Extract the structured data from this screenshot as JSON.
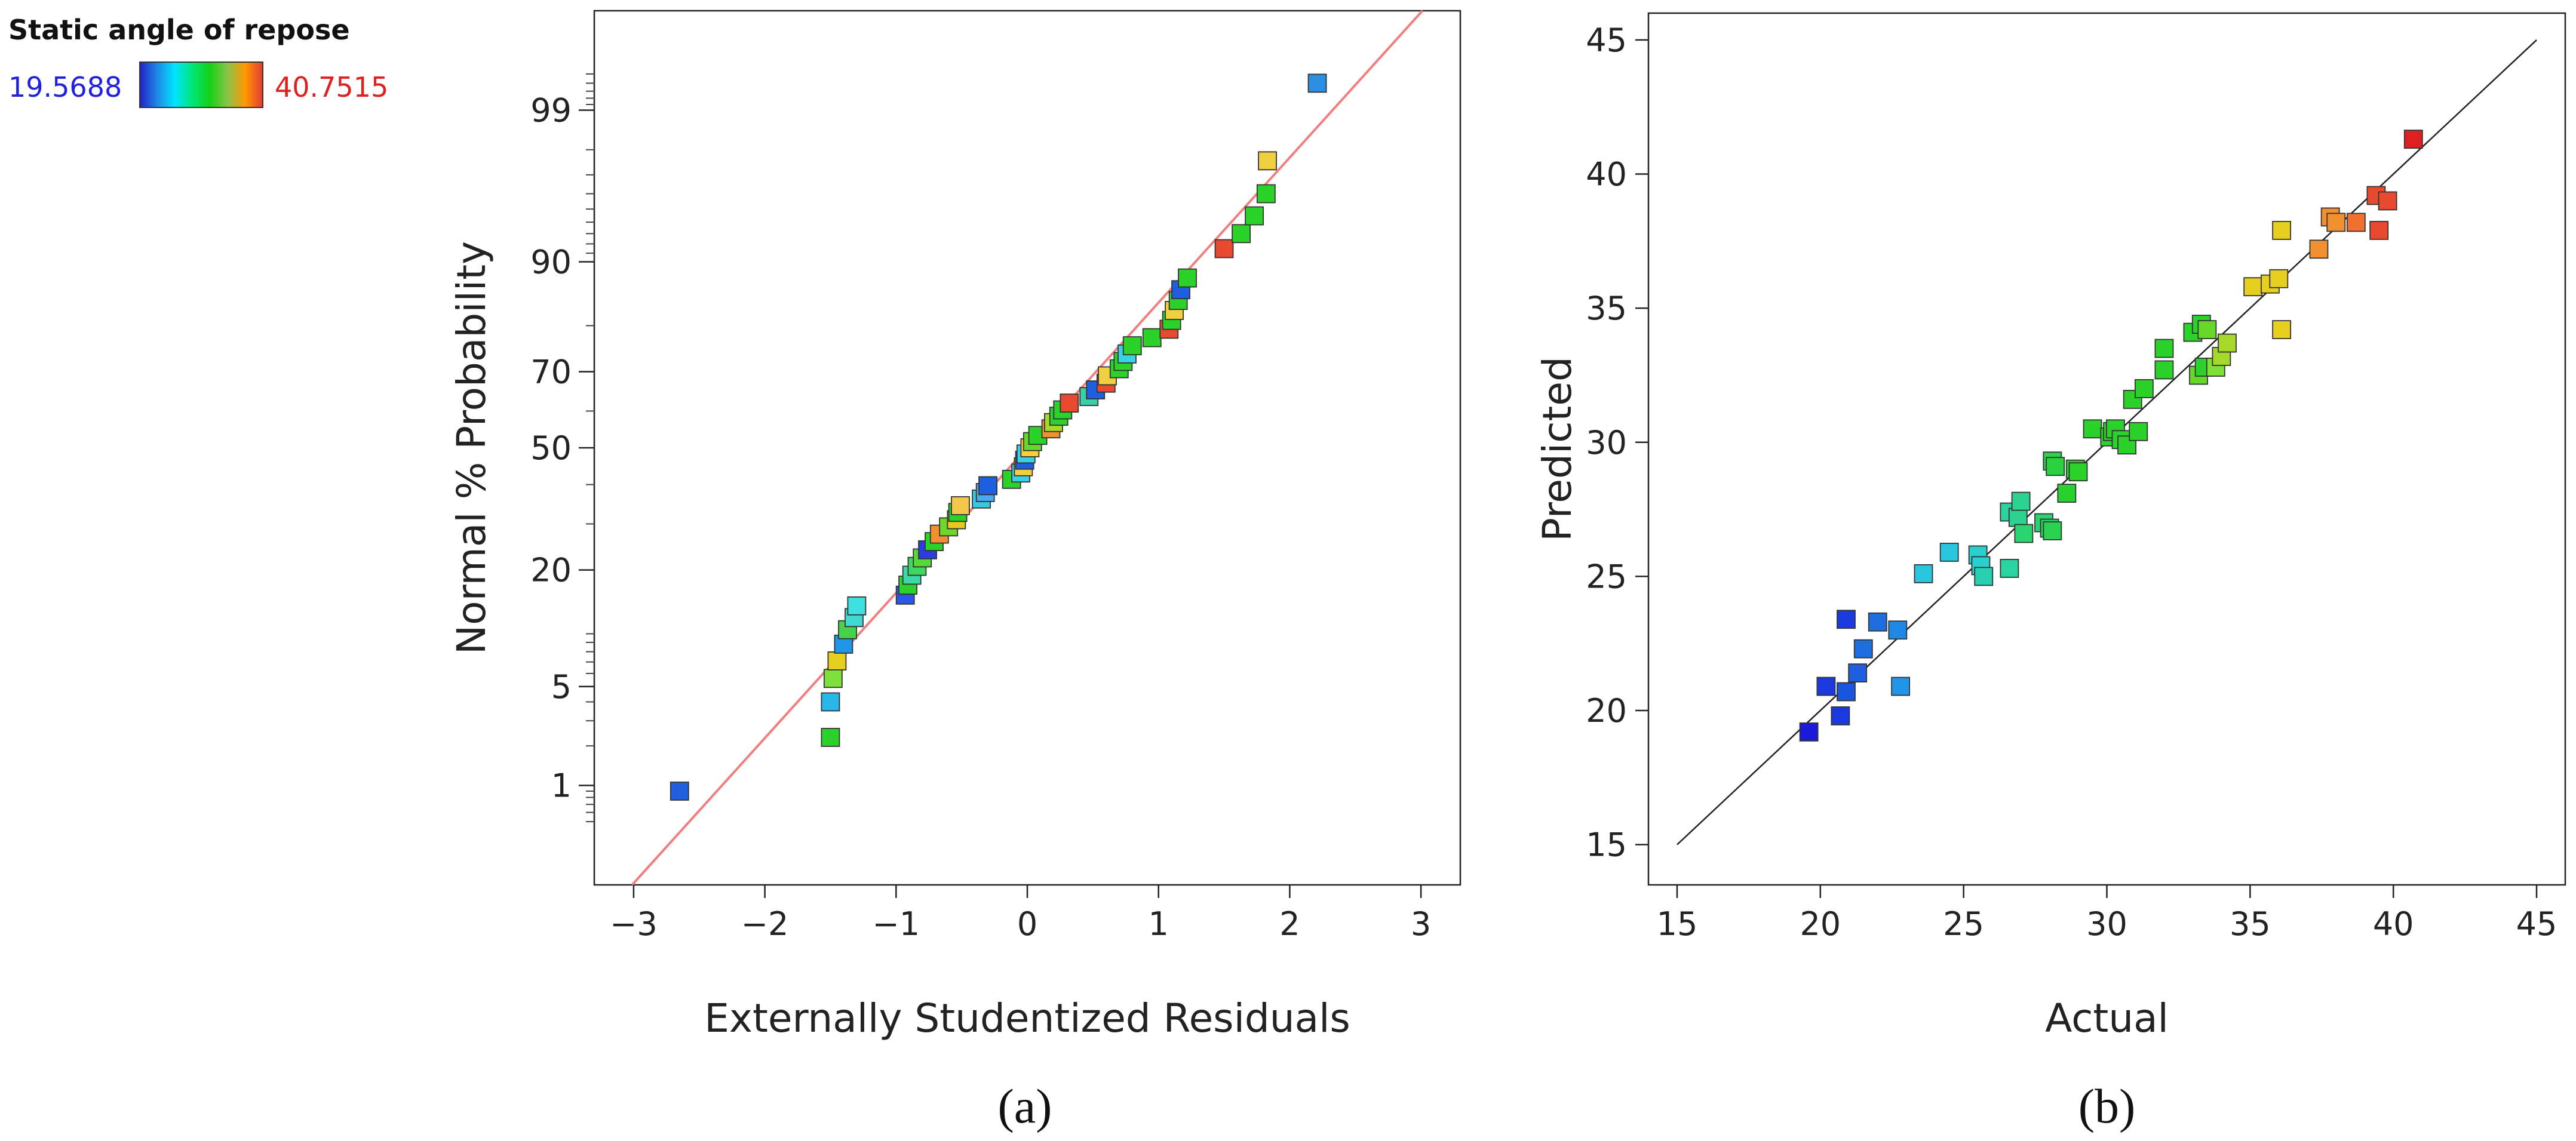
{
  "legend": {
    "title": "Static angle of repose",
    "min_label": "19.5688",
    "max_label": "40.7515",
    "min_color": "#1a1aff",
    "max_color": "#ff1a1a",
    "gradient_colors": [
      "#2020c8",
      "#1e88e5",
      "#00e5ff",
      "#00e676",
      "#16d016",
      "#8bc34a",
      "#ff9800",
      "#e53935"
    ]
  },
  "panels": [
    {
      "tag": "(a)"
    },
    {
      "tag": "(b)"
    }
  ],
  "chart_data": [
    {
      "type": "scatter",
      "title": "",
      "xlabel": "Externally Studentized Residuals",
      "ylabel": "Normal % Probability",
      "xlim": [
        -3.3,
        3.3
      ],
      "y_scale": "normal-probability",
      "ylim_percent": [
        0.13,
        99.87
      ],
      "x_ticks": [
        -3,
        -2,
        -1,
        0,
        1,
        2,
        3
      ],
      "x_tick_labels": [
        "−3",
        "−2",
        "−1",
        "0",
        "1",
        "2",
        "3"
      ],
      "y_ticks_percent": [
        1,
        5,
        20,
        50,
        70,
        90,
        99
      ],
      "y_tick_labels": [
        "1",
        "5",
        "20",
        "50",
        "70",
        "90",
        "99"
      ],
      "reference_line": {
        "color": "#f08080",
        "from": [
          -3.3,
          -3.3
        ],
        "to": [
          3.3,
          3.3
        ]
      },
      "points": [
        {
          "x": -2.65,
          "p": 0.9,
          "color": "#1f5fe0"
        },
        {
          "x": -1.5,
          "p": 2.3,
          "color": "#2ad22a"
        },
        {
          "x": -1.5,
          "p": 4.0,
          "color": "#29b6e8"
        },
        {
          "x": -1.48,
          "p": 5.6,
          "color": "#7ee03a"
        },
        {
          "x": -1.45,
          "p": 7.1,
          "color": "#e6cf1e"
        },
        {
          "x": -1.4,
          "p": 8.8,
          "color": "#2196e8"
        },
        {
          "x": -1.37,
          "p": 10.5,
          "color": "#46d24a"
        },
        {
          "x": -1.32,
          "p": 12.1,
          "color": "#40d8d0"
        },
        {
          "x": -1.3,
          "p": 13.8,
          "color": "#3ee0e0"
        },
        {
          "x": -0.93,
          "p": 15.5,
          "color": "#2a55e6"
        },
        {
          "x": -0.91,
          "p": 17.2,
          "color": "#2ad22a"
        },
        {
          "x": -0.88,
          "p": 19.0,
          "color": "#3cd8a8"
        },
        {
          "x": -0.84,
          "p": 20.7,
          "color": "#3cd860"
        },
        {
          "x": -0.8,
          "p": 22.4,
          "color": "#5ad83a"
        },
        {
          "x": -0.76,
          "p": 24.1,
          "color": "#2a3ee0"
        },
        {
          "x": -0.71,
          "p": 25.9,
          "color": "#2ad22a"
        },
        {
          "x": -0.67,
          "p": 27.6,
          "color": "#f29030"
        },
        {
          "x": -0.6,
          "p": 29.3,
          "color": "#6ed82a"
        },
        {
          "x": -0.54,
          "p": 31.0,
          "color": "#e8c820"
        },
        {
          "x": -0.53,
          "p": 32.8,
          "color": "#2ad22a"
        },
        {
          "x": -0.51,
          "p": 34.5,
          "color": "#f4c64a"
        },
        {
          "x": -0.35,
          "p": 36.2,
          "color": "#3ac8e0"
        },
        {
          "x": -0.32,
          "p": 37.9,
          "color": "#4ca8f0"
        },
        {
          "x": -0.3,
          "p": 39.7,
          "color": "#1e5fe0"
        },
        {
          "x": -0.12,
          "p": 41.4,
          "color": "#2ad22a"
        },
        {
          "x": -0.05,
          "p": 43.1,
          "color": "#3ad0e8"
        },
        {
          "x": -0.03,
          "p": 44.8,
          "color": "#f0d040"
        },
        {
          "x": -0.02,
          "p": 46.6,
          "color": "#1e5fe0"
        },
        {
          "x": -0.01,
          "p": 48.3,
          "color": "#3ad0e8"
        },
        {
          "x": 0.02,
          "p": 50.0,
          "color": "#ffd030"
        },
        {
          "x": 0.04,
          "p": 51.7,
          "color": "#66d82a"
        },
        {
          "x": 0.08,
          "p": 53.4,
          "color": "#2ad22a"
        },
        {
          "x": 0.18,
          "p": 55.2,
          "color": "#f29030"
        },
        {
          "x": 0.2,
          "p": 56.9,
          "color": "#a6d82a"
        },
        {
          "x": 0.24,
          "p": 58.6,
          "color": "#2ad22a"
        },
        {
          "x": 0.27,
          "p": 60.3,
          "color": "#2ad22a"
        },
        {
          "x": 0.32,
          "p": 62.1,
          "color": "#e84a30"
        },
        {
          "x": 0.47,
          "p": 63.8,
          "color": "#3ad0a8"
        },
        {
          "x": 0.52,
          "p": 65.5,
          "color": "#1e5fe0"
        },
        {
          "x": 0.6,
          "p": 67.2,
          "color": "#e84a30"
        },
        {
          "x": 0.61,
          "p": 69.0,
          "color": "#f0d040"
        },
        {
          "x": 0.7,
          "p": 70.7,
          "color": "#2ad22a"
        },
        {
          "x": 0.73,
          "p": 72.4,
          "color": "#2ad22a"
        },
        {
          "x": 0.76,
          "p": 74.1,
          "color": "#3ad0e8"
        },
        {
          "x": 0.8,
          "p": 75.9,
          "color": "#2ad22a"
        },
        {
          "x": 0.95,
          "p": 77.6,
          "color": "#2ad22a"
        },
        {
          "x": 1.08,
          "p": 79.3,
          "color": "#e84a30"
        },
        {
          "x": 1.1,
          "p": 81.0,
          "color": "#2ad22a"
        },
        {
          "x": 1.12,
          "p": 82.8,
          "color": "#f0d040"
        },
        {
          "x": 1.15,
          "p": 84.5,
          "color": "#2ad22a"
        },
        {
          "x": 1.17,
          "p": 86.2,
          "color": "#1e5fe0"
        },
        {
          "x": 1.22,
          "p": 87.9,
          "color": "#2ad22a"
        },
        {
          "x": 1.5,
          "p": 91.5,
          "color": "#e84a30"
        },
        {
          "x": 1.63,
          "p": 93.0,
          "color": "#2ad22a"
        },
        {
          "x": 1.73,
          "p": 94.5,
          "color": "#2ad22a"
        },
        {
          "x": 1.82,
          "p": 96.0,
          "color": "#2ad22a"
        },
        {
          "x": 1.83,
          "p": 97.6,
          "color": "#f0d040"
        },
        {
          "x": 2.21,
          "p": 99.4,
          "color": "#2a8fe0"
        }
      ]
    },
    {
      "type": "scatter",
      "title": "",
      "xlabel": "Actual",
      "ylabel": "Predicted",
      "xlim": [
        14,
        46
      ],
      "ylim": [
        13.5,
        46
      ],
      "x_ticks": [
        15,
        20,
        25,
        30,
        35,
        40,
        45
      ],
      "y_ticks": [
        15,
        20,
        25,
        30,
        35,
        40,
        45
      ],
      "reference_line": {
        "color": "#222222",
        "from": [
          15,
          15
        ],
        "to": [
          45,
          45
        ]
      },
      "points": [
        {
          "x": 19.6,
          "y": 19.2,
          "color": "#1a1ad8"
        },
        {
          "x": 20.2,
          "y": 20.9,
          "color": "#1a3ae0"
        },
        {
          "x": 20.7,
          "y": 19.8,
          "color": "#1a3ae0"
        },
        {
          "x": 20.9,
          "y": 20.7,
          "color": "#1a55e0"
        },
        {
          "x": 20.9,
          "y": 23.4,
          "color": "#1a3ae0"
        },
        {
          "x": 21.3,
          "y": 21.4,
          "color": "#1e5fe0"
        },
        {
          "x": 21.5,
          "y": 22.3,
          "color": "#1e6ee0"
        },
        {
          "x": 22.0,
          "y": 23.3,
          "color": "#1e6ee0"
        },
        {
          "x": 22.7,
          "y": 23.0,
          "color": "#1e88e5"
        },
        {
          "x": 22.8,
          "y": 20.9,
          "color": "#2196e8"
        },
        {
          "x": 23.6,
          "y": 25.1,
          "color": "#29c6e0"
        },
        {
          "x": 24.5,
          "y": 25.9,
          "color": "#29c6e0"
        },
        {
          "x": 25.5,
          "y": 25.8,
          "color": "#29d0d0"
        },
        {
          "x": 25.6,
          "y": 25.4,
          "color": "#29d0d0"
        },
        {
          "x": 25.7,
          "y": 25.0,
          "color": "#29d0b0"
        },
        {
          "x": 26.6,
          "y": 25.3,
          "color": "#2ad4a0"
        },
        {
          "x": 26.6,
          "y": 27.4,
          "color": "#2ad4a0"
        },
        {
          "x": 26.9,
          "y": 27.2,
          "color": "#2ad490"
        },
        {
          "x": 27.0,
          "y": 27.8,
          "color": "#2ad490"
        },
        {
          "x": 27.1,
          "y": 26.6,
          "color": "#2ad470"
        },
        {
          "x": 27.8,
          "y": 27.0,
          "color": "#2ad270"
        },
        {
          "x": 28.0,
          "y": 26.8,
          "color": "#2ad260"
        },
        {
          "x": 28.1,
          "y": 26.7,
          "color": "#2ad250"
        },
        {
          "x": 28.1,
          "y": 29.3,
          "color": "#2ad250"
        },
        {
          "x": 28.2,
          "y": 29.1,
          "color": "#2ad240"
        },
        {
          "x": 28.6,
          "y": 28.1,
          "color": "#2ad230"
        },
        {
          "x": 28.9,
          "y": 29.0,
          "color": "#2ad230"
        },
        {
          "x": 29.0,
          "y": 28.9,
          "color": "#2ad22a"
        },
        {
          "x": 29.5,
          "y": 30.5,
          "color": "#2ad22a"
        },
        {
          "x": 30.1,
          "y": 30.2,
          "color": "#2ad22a"
        },
        {
          "x": 30.2,
          "y": 30.4,
          "color": "#2ad22a"
        },
        {
          "x": 30.3,
          "y": 30.5,
          "color": "#2ad22a"
        },
        {
          "x": 30.5,
          "y": 30.1,
          "color": "#2ad22a"
        },
        {
          "x": 30.7,
          "y": 29.9,
          "color": "#2ad22a"
        },
        {
          "x": 30.9,
          "y": 31.6,
          "color": "#2ad22a"
        },
        {
          "x": 31.1,
          "y": 30.4,
          "color": "#2ad22a"
        },
        {
          "x": 31.3,
          "y": 32.0,
          "color": "#2ad22a"
        },
        {
          "x": 32.0,
          "y": 32.7,
          "color": "#2ad22a"
        },
        {
          "x": 32.0,
          "y": 33.5,
          "color": "#2ad22a"
        },
        {
          "x": 33.0,
          "y": 34.1,
          "color": "#2ad22a"
        },
        {
          "x": 33.2,
          "y": 32.5,
          "color": "#66d82a"
        },
        {
          "x": 33.3,
          "y": 34.4,
          "color": "#2ad22a"
        },
        {
          "x": 33.4,
          "y": 32.8,
          "color": "#2ad22a"
        },
        {
          "x": 33.5,
          "y": 34.2,
          "color": "#66d82a"
        },
        {
          "x": 33.8,
          "y": 32.8,
          "color": "#7ee03a"
        },
        {
          "x": 34.0,
          "y": 33.2,
          "color": "#a6d82a"
        },
        {
          "x": 34.2,
          "y": 33.7,
          "color": "#a6d82a"
        },
        {
          "x": 35.1,
          "y": 35.8,
          "color": "#e6cf1e"
        },
        {
          "x": 35.7,
          "y": 35.9,
          "color": "#e6cf1e"
        },
        {
          "x": 36.0,
          "y": 36.1,
          "color": "#e6cf1e"
        },
        {
          "x": 36.1,
          "y": 37.9,
          "color": "#e6cf1e"
        },
        {
          "x": 36.1,
          "y": 34.2,
          "color": "#e6cf1e"
        },
        {
          "x": 37.4,
          "y": 37.2,
          "color": "#f29030"
        },
        {
          "x": 37.8,
          "y": 38.4,
          "color": "#f29030"
        },
        {
          "x": 38.0,
          "y": 38.2,
          "color": "#f29030"
        },
        {
          "x": 38.7,
          "y": 38.2,
          "color": "#f07030"
        },
        {
          "x": 39.4,
          "y": 39.2,
          "color": "#e84a30"
        },
        {
          "x": 39.5,
          "y": 37.9,
          "color": "#e84a30"
        },
        {
          "x": 39.8,
          "y": 39.0,
          "color": "#e84a30"
        },
        {
          "x": 40.7,
          "y": 41.3,
          "color": "#e02020"
        }
      ]
    }
  ]
}
